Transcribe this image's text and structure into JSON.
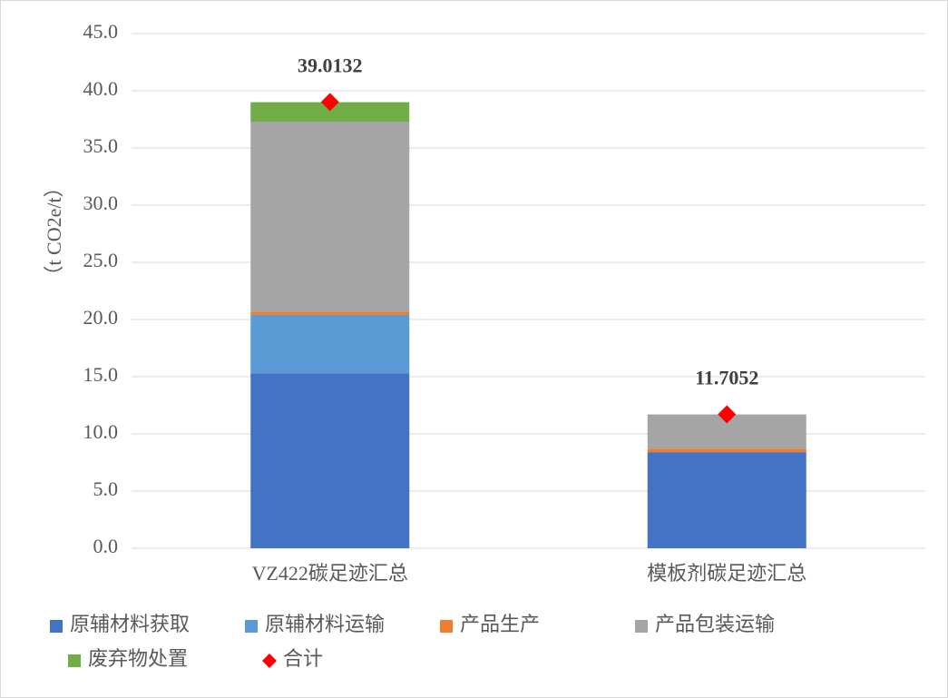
{
  "chart_data": {
    "type": "stacked_bar",
    "ylabel": "（t CO2e/t）",
    "categories": [
      "VZ422碳足迹汇总",
      "模板剂碳足迹汇总"
    ],
    "series": [
      {
        "name": "原辅材料获取",
        "color": "#4472c4",
        "values": [
          15.3,
          8.4
        ]
      },
      {
        "name": "原辅材料运输",
        "color": "#5b9bd5",
        "values": [
          5.1,
          0
        ]
      },
      {
        "name": "产品生产",
        "color": "#ed7d31",
        "values": [
          0.3,
          0.3
        ]
      },
      {
        "name": "产品包装运输",
        "color": "#a5a5a5",
        "values": [
          16.6,
          3.0
        ]
      },
      {
        "name": "废弃物处置",
        "color": "#70ad47",
        "values": [
          1.7,
          0
        ]
      }
    ],
    "total": {
      "name": "合计",
      "color": "#ff0000",
      "values": [
        39.0132,
        11.7052
      ],
      "value_labels": [
        "39.0132",
        "11.7052"
      ]
    },
    "ylim": [
      0,
      45
    ],
    "yticks": [
      {
        "value": 0,
        "label": "0.0"
      },
      {
        "value": 5,
        "label": "5.0"
      },
      {
        "value": 10,
        "label": "10.0"
      },
      {
        "value": 15,
        "label": "15.0"
      },
      {
        "value": 20,
        "label": "20.0"
      },
      {
        "value": 25,
        "label": "25.0"
      },
      {
        "value": 30,
        "label": "30.0"
      },
      {
        "value": 35,
        "label": "35.0"
      },
      {
        "value": 40,
        "label": "40.0"
      },
      {
        "value": 45,
        "label": "45.0"
      }
    ],
    "grid": true
  }
}
